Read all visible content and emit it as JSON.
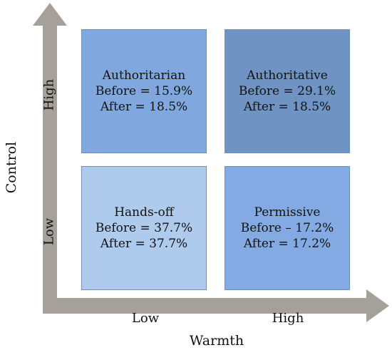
{
  "axes": {
    "y_label": "Control",
    "x_label": "Warmth",
    "y_ticks": {
      "high": "High",
      "low": "Low"
    },
    "x_ticks": {
      "low": "Low",
      "high": "High"
    },
    "arrow_color": "#a6a09b"
  },
  "quadrants": {
    "authoritarian": {
      "name": "Authoritarian",
      "before": "Before = 15.9%",
      "after": "After = 18.5%",
      "color": "#81a8de"
    },
    "authoritative": {
      "name": "Authoritative",
      "before": "Before = 29.1%",
      "after": "After = 18.5%",
      "color": "#6f94c3"
    },
    "hands_off": {
      "name": "Hands-off",
      "before": "Before = 37.7%",
      "after": "After = 37.7%",
      "color": "#aecbee"
    },
    "permissive": {
      "name": "Permissive",
      "before": "Before – 17.2%",
      "after": "After = 17.2%",
      "color": "#84aae3"
    }
  }
}
